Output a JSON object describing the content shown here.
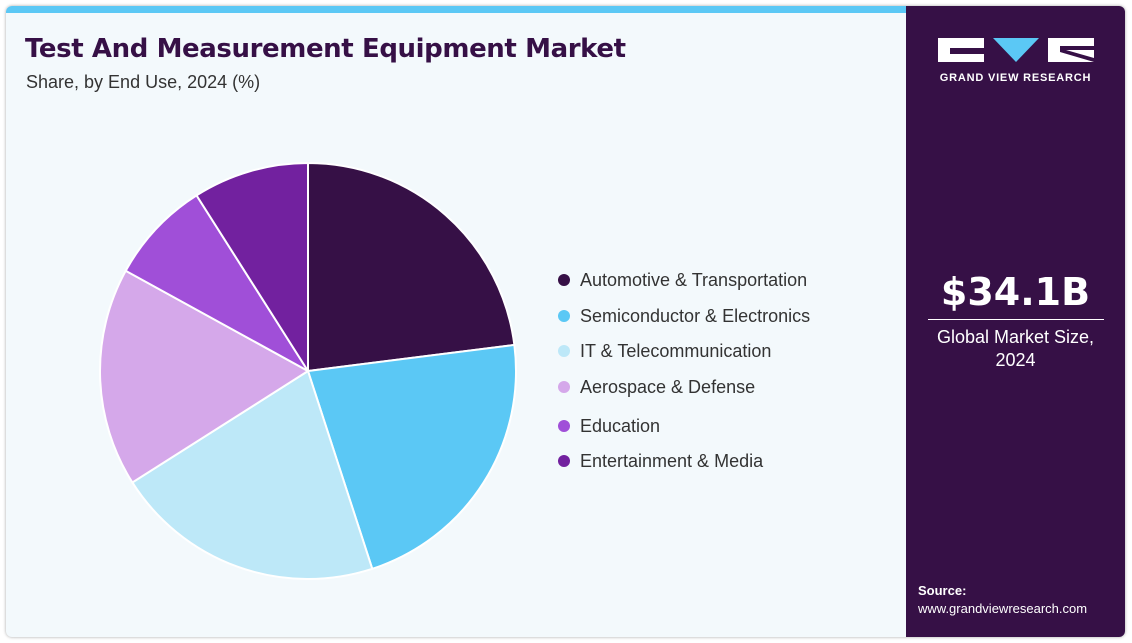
{
  "chart_data": {
    "type": "pie",
    "title": "Test And Measurement Equipment Market",
    "subtitle": "Share, by End Use, 2024 (%)",
    "categories": [
      "Automotive & Transportation",
      "Semiconductor & Electronics",
      "IT & Telecommunication",
      "Aerospace & Defense",
      "Education",
      "Entertainment & Media"
    ],
    "values": [
      23,
      22,
      21,
      17,
      8,
      9
    ],
    "colors": [
      "#361046",
      "#5bc8f5",
      "#bde8f8",
      "#d5a8ea",
      "#a04fd8",
      "#72219f"
    ],
    "legend_position": "right"
  },
  "sidebar": {
    "brand": "GRAND VIEW RESEARCH",
    "market_value": "$34.1B",
    "market_label": "Global Market Size, 2024",
    "source_title": "Source:",
    "source_url": "www.grandviewresearch.com"
  }
}
